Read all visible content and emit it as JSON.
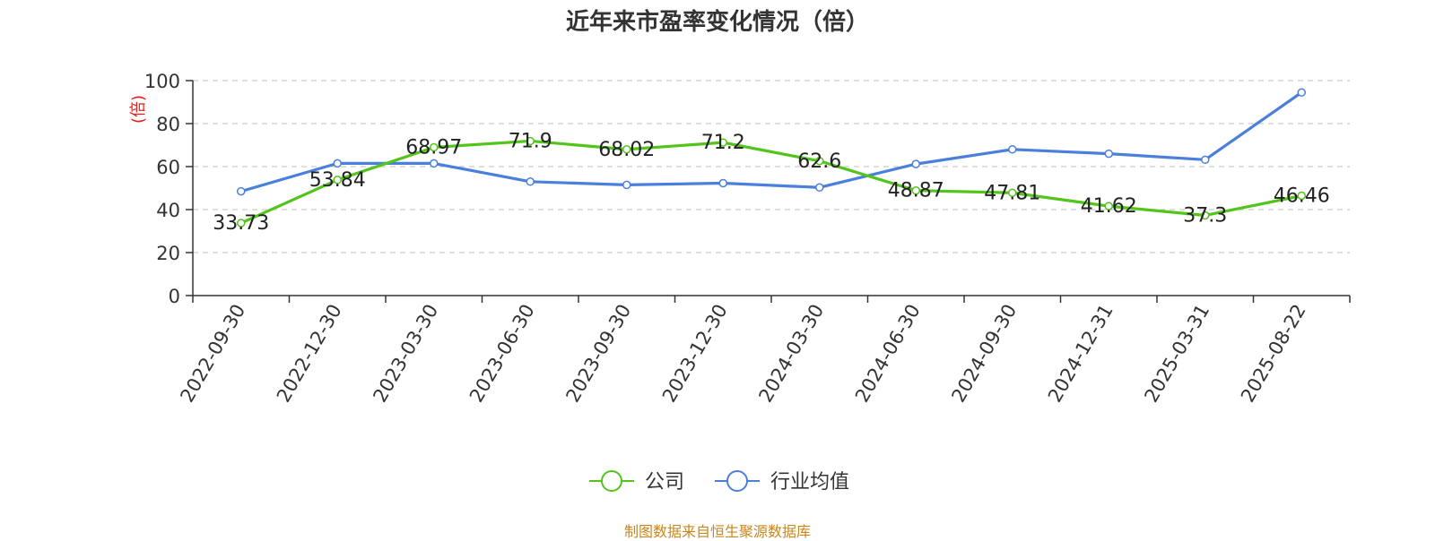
{
  "chart_data": {
    "type": "line",
    "title": "近年来市盈率变化情况（倍）",
    "ylabel": "(倍)",
    "xlabel": "",
    "categories": [
      "2022-09-30",
      "2022-12-30",
      "2023-03-30",
      "2023-06-30",
      "2023-09-30",
      "2023-12-30",
      "2024-03-30",
      "2024-06-30",
      "2024-09-30",
      "2024-12-31",
      "2025-03-31",
      "2025-08-22"
    ],
    "ylim": [
      0,
      100
    ],
    "yticks": [
      0,
      20,
      40,
      60,
      80,
      100
    ],
    "grid": true,
    "legend_position": "bottom",
    "series": [
      {
        "name": "公司",
        "color": "#52c41a",
        "show_labels": true,
        "values": [
          33.73,
          53.84,
          68.97,
          71.9,
          68.02,
          71.2,
          62.6,
          48.87,
          47.81,
          41.62,
          37.3,
          46.46
        ],
        "labels": [
          "33.73",
          "53.84",
          "68.97",
          "71.9",
          "68.02",
          "71.2",
          "62.6",
          "48.87",
          "47.81",
          "41.62",
          "37.3",
          "46.46"
        ]
      },
      {
        "name": "行业均值",
        "color": "#4a7fdc",
        "show_labels": false,
        "values": [
          48.5,
          61.5,
          61.5,
          53.0,
          51.5,
          52.3,
          50.3,
          61.2,
          68.0,
          66.0,
          63.2,
          94.5
        ]
      }
    ]
  },
  "footer": {
    "source": "制图数据来自恒生聚源数据库"
  }
}
